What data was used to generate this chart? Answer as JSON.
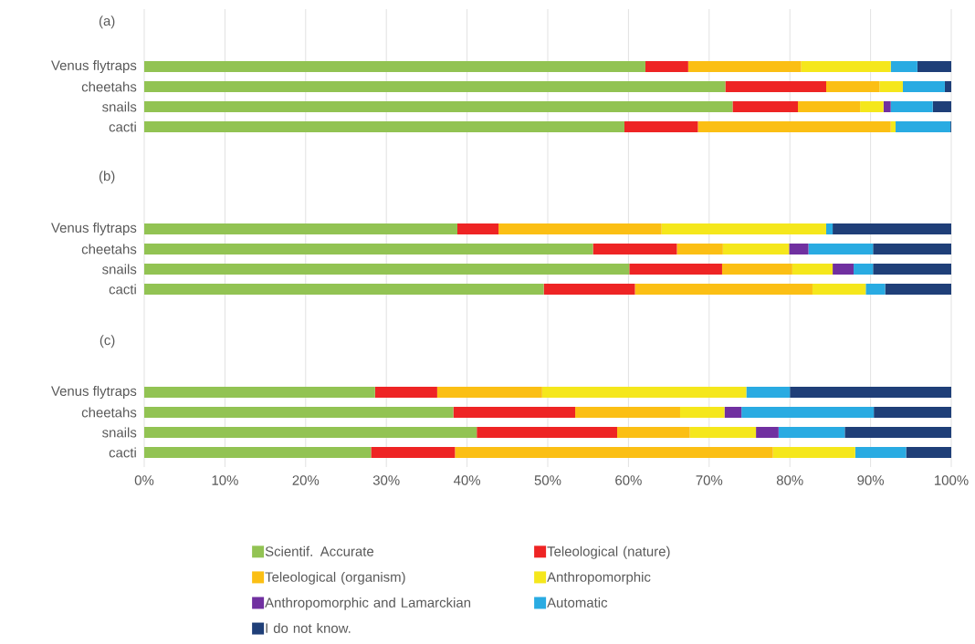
{
  "chart_data": [
    {
      "type": "bar",
      "orientation": "horizontal",
      "stacked": true,
      "title": "(a)",
      "categories": [
        "Venus flytraps",
        "cheetahs",
        "snails",
        "cacti"
      ],
      "xlim": [
        0,
        100
      ],
      "xticks": [
        {
          "value": 0,
          "label": null
        },
        {
          "value": 10,
          "label": null
        },
        {
          "value": 20,
          "label": null
        },
        {
          "value": 30,
          "label": null
        },
        {
          "value": 40,
          "label": null
        },
        {
          "value": 50,
          "label": null
        },
        {
          "value": 60,
          "label": null
        },
        {
          "value": 70,
          "label": null
        },
        {
          "value": 80,
          "label": null
        },
        {
          "value": 90,
          "label": null
        },
        {
          "value": 100,
          "label": null
        }
      ],
      "grid": "x",
      "tick_labels": "y",
      "series": [
        {
          "color": "#92c353",
          "values": [
            62.1,
            72.0,
            72.9,
            59.5
          ]
        },
        {
          "color": "#ee2424",
          "values": [
            5.3,
            12.5,
            8.1,
            9.1
          ]
        },
        {
          "color": "#fbbf14",
          "values": [
            14.0,
            6.6,
            7.7,
            23.9
          ]
        },
        {
          "color": "#f5e71c",
          "values": [
            11.1,
            2.9,
            2.9,
            0.6
          ]
        },
        {
          "color": "#7030a0",
          "values": [
            0,
            0,
            0.9,
            0
          ]
        },
        {
          "color": "#29abe2",
          "values": [
            3.3,
            5.2,
            5.2,
            6.8
          ]
        },
        {
          "color": "#1f3f78",
          "values": [
            4.2,
            0.8,
            2.3,
            0.1
          ]
        }
      ]
    },
    {
      "type": "bar",
      "orientation": "horizontal",
      "stacked": true,
      "title": "(b)",
      "categories": [
        "Venus flytraps",
        "cheetahs",
        "snails",
        "cacti"
      ],
      "xlim": [
        0,
        100
      ],
      "xticks": [
        {
          "value": 0,
          "label": null
        },
        {
          "value": 10,
          "label": null
        },
        {
          "value": 20,
          "label": null
        },
        {
          "value": 30,
          "label": null
        },
        {
          "value": 40,
          "label": null
        },
        {
          "value": 50,
          "label": null
        },
        {
          "value": 60,
          "label": null
        },
        {
          "value": 70,
          "label": null
        },
        {
          "value": 80,
          "label": null
        },
        {
          "value": 90,
          "label": null
        },
        {
          "value": 100,
          "label": null
        }
      ],
      "grid": "x",
      "tick_labels": "y",
      "series": [
        {
          "color": "#92c353",
          "values": [
            38.8,
            55.6,
            60.1,
            49.5
          ]
        },
        {
          "color": "#ee2424",
          "values": [
            5.1,
            10.4,
            11.5,
            11.3
          ]
        },
        {
          "color": "#fbbf14",
          "values": [
            20.2,
            5.7,
            8.7,
            22.0
          ]
        },
        {
          "color": "#f5e71c",
          "values": [
            20.4,
            8.2,
            5.0,
            6.6
          ]
        },
        {
          "color": "#7030a0",
          "values": [
            0,
            2.4,
            2.6,
            0
          ]
        },
        {
          "color": "#29abe2",
          "values": [
            0.8,
            8.0,
            2.4,
            2.4
          ]
        },
        {
          "color": "#1f3f78",
          "values": [
            14.7,
            9.7,
            9.7,
            8.2
          ]
        }
      ]
    },
    {
      "type": "bar",
      "orientation": "horizontal",
      "stacked": true,
      "title": "(c)",
      "categories": [
        "Venus flytraps",
        "cheetahs",
        "snails",
        "cacti"
      ],
      "xlim": [
        0,
        100
      ],
      "xticks": [
        {
          "value": 0,
          "label": "0%"
        },
        {
          "value": 10,
          "label": "10%"
        },
        {
          "value": 20,
          "label": "20%"
        },
        {
          "value": 30,
          "label": "30%"
        },
        {
          "value": 40,
          "label": "40%"
        },
        {
          "value": 50,
          "label": "50%"
        },
        {
          "value": 60,
          "label": "60%"
        },
        {
          "value": 70,
          "label": "70%"
        },
        {
          "value": 80,
          "label": "80%"
        },
        {
          "value": 90,
          "label": "90%"
        },
        {
          "value": 100,
          "label": "100%"
        }
      ],
      "grid": "x",
      "legend": "bottom",
      "series": [
        {
          "name": "Scientif. Accurate",
          "color": "#92c353",
          "values": [
            28.6,
            38.3,
            41.2,
            28.1
          ]
        },
        {
          "name": "Teleological (nature)",
          "color": "#ee2424",
          "values": [
            7.7,
            15.1,
            17.4,
            10.4
          ]
        },
        {
          "name": "Teleological (organism)",
          "color": "#fbbf14",
          "values": [
            13.0,
            13.0,
            9.0,
            39.4
          ]
        },
        {
          "name": "Anthropomorphic",
          "color": "#f5e71c",
          "values": [
            25.3,
            5.5,
            8.2,
            10.2
          ]
        },
        {
          "name": "Anthropomorphic and Lamarckian",
          "color": "#7030a0",
          "values": [
            0,
            2.1,
            2.8,
            0
          ]
        },
        {
          "name": "Automatic",
          "color": "#29abe2",
          "values": [
            5.4,
            16.4,
            8.2,
            6.3
          ]
        },
        {
          "name": "I do not know.",
          "color": "#1f3f78",
          "values": [
            20.0,
            9.6,
            13.2,
            5.6
          ]
        }
      ]
    }
  ]
}
